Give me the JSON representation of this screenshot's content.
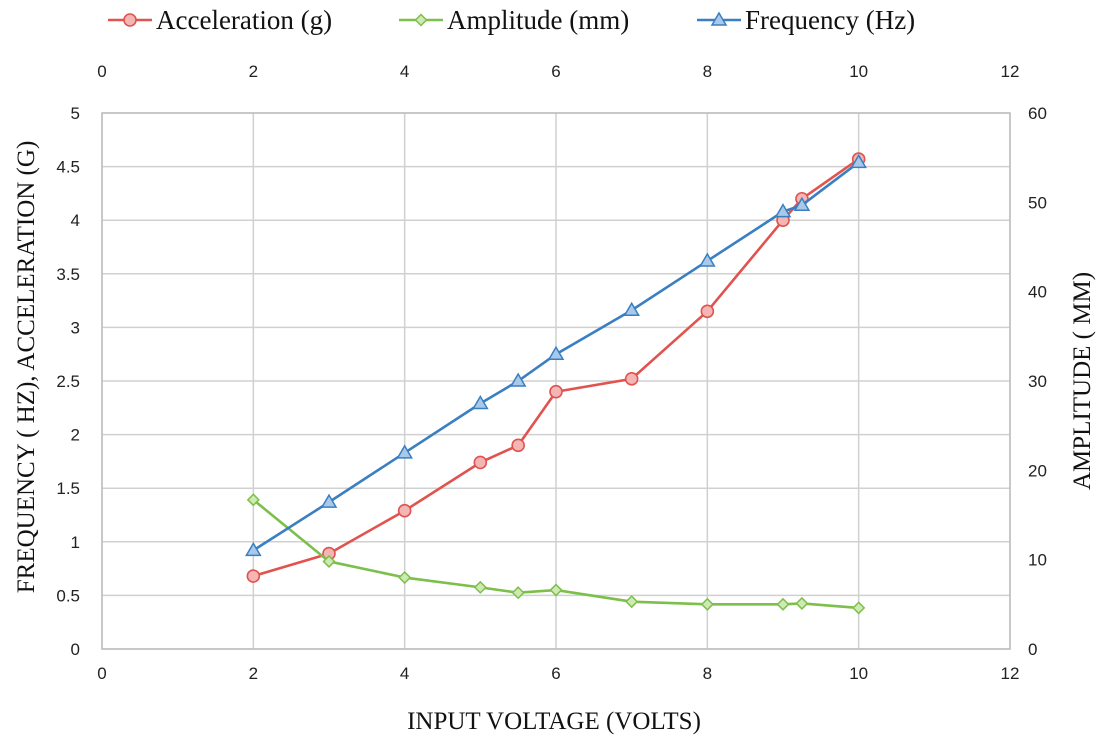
{
  "chart_data": {
    "type": "line",
    "x": [
      2,
      3,
      4,
      5,
      5.5,
      6,
      7,
      8,
      9,
      9.25,
      10
    ],
    "xlabel": "INPUT VOLTAGE (VOLTS)",
    "xlim": [
      0,
      12
    ],
    "x_ticks": [
      "0",
      "2",
      "4",
      "6",
      "8",
      "10",
      "12"
    ],
    "x_ticks_top": [
      "0",
      "2",
      "4",
      "6",
      "8",
      "10",
      "12"
    ],
    "ylabel": "FREQUENCY ( HZ), ACCELERATION (G)",
    "ylim": [
      0,
      5
    ],
    "y_ticks": [
      "0",
      "0.5",
      "1",
      "1.5",
      "2",
      "2.5",
      "3",
      "3.5",
      "4",
      "4.5",
      "5"
    ],
    "y2label": "AMPLITUDE ( MM)",
    "y2lim": [
      0,
      60
    ],
    "y2_ticks": [
      "0",
      "10",
      "20",
      "30",
      "40",
      "50",
      "60"
    ],
    "grid": true,
    "legend_position": "top",
    "series": [
      {
        "name": "Acceleration (g)",
        "axis": "left",
        "marker": "circle",
        "color": "#e0534f",
        "fill": "#f4b6b4",
        "values": [
          0.68,
          0.89,
          1.29,
          1.74,
          1.9,
          2.4,
          2.52,
          3.15,
          4.0,
          4.2,
          4.57
        ]
      },
      {
        "name": "Amplitude (mm)",
        "axis": "right",
        "marker": "diamond",
        "color": "#7cbf4a",
        "fill": "#cfe9b4",
        "values": [
          16.7,
          9.8,
          8.0,
          6.9,
          6.3,
          6.6,
          5.3,
          5.0,
          5.0,
          5.1,
          4.6
        ]
      },
      {
        "name": "Frequency (Hz)",
        "axis": "left",
        "marker": "triangle",
        "color": "#3a7fc1",
        "fill": "#a8c9ea",
        "values": [
          0.92,
          1.37,
          1.83,
          2.29,
          2.5,
          2.75,
          3.16,
          3.62,
          4.08,
          4.14,
          4.54
        ]
      }
    ]
  }
}
